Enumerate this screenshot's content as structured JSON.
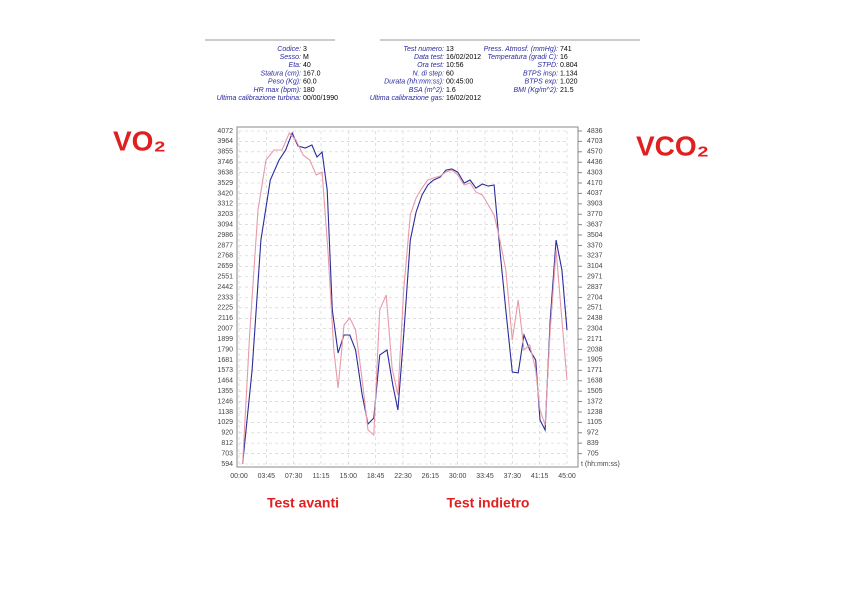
{
  "info": [
    [
      {
        "label": "Codice:",
        "value": "3"
      },
      {
        "label": "Sesso:",
        "value": "M"
      },
      {
        "label": "Eta:",
        "value": "40"
      },
      {
        "label": "Statura (cm):",
        "value": "167.0"
      },
      {
        "label": "Peso (Kg):",
        "value": "60.0"
      },
      {
        "label": "HR max (bpm):",
        "value": "180"
      },
      {
        "label": "Ultima calibrazione turbina:",
        "value": "00/00/1990"
      }
    ],
    [
      {
        "label": "Test numero:",
        "value": "13"
      },
      {
        "label": "Data test:",
        "value": "16/02/2012"
      },
      {
        "label": "Ora test:",
        "value": "10:56"
      },
      {
        "label": "N. di step:",
        "value": "60"
      },
      {
        "label": "Durata (hh:mm:ss):",
        "value": "00:45:00"
      },
      {
        "label": "BSA (m^2):",
        "value": "1.6"
      },
      {
        "label": "Ultima calibrazione gas:",
        "value": "16/02/2012"
      }
    ],
    [
      {
        "label": "Press. Atmosf. (mmHg):",
        "value": "741"
      },
      {
        "label": "Temperatura (gradi C):",
        "value": "16"
      },
      {
        "label": "STPD:",
        "value": "0.804"
      },
      {
        "label": "BTPS insp:",
        "value": "1.134"
      },
      {
        "label": "BTPS exp:",
        "value": "1.020"
      },
      {
        "label": "BMI (Kg/m^2):",
        "value": "21.5"
      }
    ]
  ],
  "captions": [
    "Test avanti",
    "Test indietro"
  ],
  "chart_data": {
    "type": "line",
    "xlabel": "t (hh:mm:ss)",
    "grid": true,
    "xlim": [
      0,
      45
    ],
    "ylim": [
      594,
      4072
    ],
    "y2lim": [
      572,
      4836
    ],
    "xticks": [
      {
        "value": 0,
        "label": "00:00"
      },
      {
        "value": 3.75,
        "label": "03:45"
      },
      {
        "value": 7.5,
        "label": "07:30"
      },
      {
        "value": 11.25,
        "label": "11:15"
      },
      {
        "value": 15,
        "label": "15:00"
      },
      {
        "value": 18.75,
        "label": "18:45"
      },
      {
        "value": 22.5,
        "label": "22:30"
      },
      {
        "value": 26.25,
        "label": "26:15"
      },
      {
        "value": 30,
        "label": "30:00"
      },
      {
        "value": 33.75,
        "label": "33:45"
      },
      {
        "value": 37.5,
        "label": "37:30"
      },
      {
        "value": 41.25,
        "label": "41:15"
      },
      {
        "value": 45,
        "label": "45:00"
      }
    ],
    "yticks": [
      594,
      703,
      812,
      920,
      1029,
      1138,
      1246,
      1355,
      1464,
      1573,
      1681,
      1790,
      1899,
      2007,
      2116,
      2225,
      2333,
      2442,
      2551,
      2659,
      2768,
      2877,
      2986,
      3094,
      3203,
      3312,
      3420,
      3529,
      3638,
      3746,
      3855,
      3964,
      4072
    ],
    "y2ticks": [
      705,
      839,
      972,
      1105,
      1238,
      1372,
      1505,
      1638,
      1771,
      1905,
      2038,
      2171,
      2304,
      2438,
      2571,
      2704,
      2837,
      2971,
      3104,
      3237,
      3370,
      3504,
      3637,
      3770,
      3903,
      4037,
      4170,
      4303,
      4436,
      4570,
      4703,
      4836
    ],
    "series": [
      {
        "name": "VO₂",
        "color": "#2b2b9a",
        "x": [
          0.5,
          1.8,
          3.0,
          4.3,
          5.5,
          6.4,
          7.3,
          8.1,
          9.1,
          10.0,
          10.7,
          11.4,
          12.1,
          12.8,
          13.6,
          14.4,
          15.2,
          16.0,
          16.9,
          17.7,
          18.5,
          19.3,
          20.3,
          21.1,
          21.8,
          22.6,
          23.5,
          24.3,
          25.1,
          25.9,
          26.7,
          27.6,
          28.4,
          29.2,
          30.0,
          30.9,
          31.7,
          32.5,
          33.4,
          34.2,
          35.0,
          35.8,
          36.6,
          37.5,
          38.3,
          39.1,
          39.9,
          40.7,
          41.3,
          42.0,
          42.7,
          43.5,
          44.3,
          45.0
        ],
        "values": [
          594,
          1576,
          2933,
          3560,
          3769,
          3873,
          4051,
          3915,
          3894,
          3926,
          3800,
          3853,
          3456,
          2202,
          1753,
          1941,
          1941,
          1785,
          1315,
          1012,
          1074,
          1732,
          1785,
          1419,
          1158,
          1941,
          2933,
          3226,
          3403,
          3508,
          3560,
          3591,
          3664,
          3675,
          3643,
          3528,
          3560,
          3476,
          3518,
          3497,
          3508,
          2829,
          2202,
          1555,
          1545,
          1941,
          1785,
          1680,
          1054,
          949,
          2098,
          2933,
          2620,
          1993
        ]
      },
      {
        "name": "VCO₂",
        "color": "#e89aa8",
        "axis": "y2",
        "x": [
          0.5,
          1.5,
          2.6,
          3.7,
          4.8,
          5.9,
          6.9,
          7.8,
          8.8,
          9.7,
          10.6,
          11.4,
          12.2,
          13.0,
          13.6,
          14.4,
          15.2,
          16.0,
          16.9,
          17.7,
          18.5,
          19.3,
          20.2,
          21.0,
          21.8,
          22.6,
          23.5,
          24.3,
          25.1,
          25.9,
          26.7,
          27.6,
          28.4,
          29.2,
          30.0,
          30.9,
          31.7,
          32.5,
          33.4,
          34.2,
          35.0,
          35.8,
          36.6,
          37.5,
          38.3,
          39.1,
          39.9,
          40.7,
          41.3,
          42.0,
          42.7,
          43.5,
          44.3,
          45.0
        ],
        "values": [
          572,
          2288,
          3825,
          4465,
          4593,
          4593,
          4810,
          4721,
          4529,
          4465,
          4273,
          4311,
          3312,
          2032,
          1545,
          2352,
          2442,
          2288,
          1648,
          1007,
          943,
          2544,
          2736,
          1801,
          1455,
          2800,
          3760,
          3978,
          4106,
          4209,
          4234,
          4260,
          4311,
          4337,
          4273,
          4145,
          4170,
          4055,
          4017,
          3888,
          3760,
          3440,
          3056,
          2160,
          2672,
          2032,
          2096,
          1776,
          1263,
          1071,
          2288,
          3312,
          2416,
          1648
        ]
      }
    ]
  }
}
